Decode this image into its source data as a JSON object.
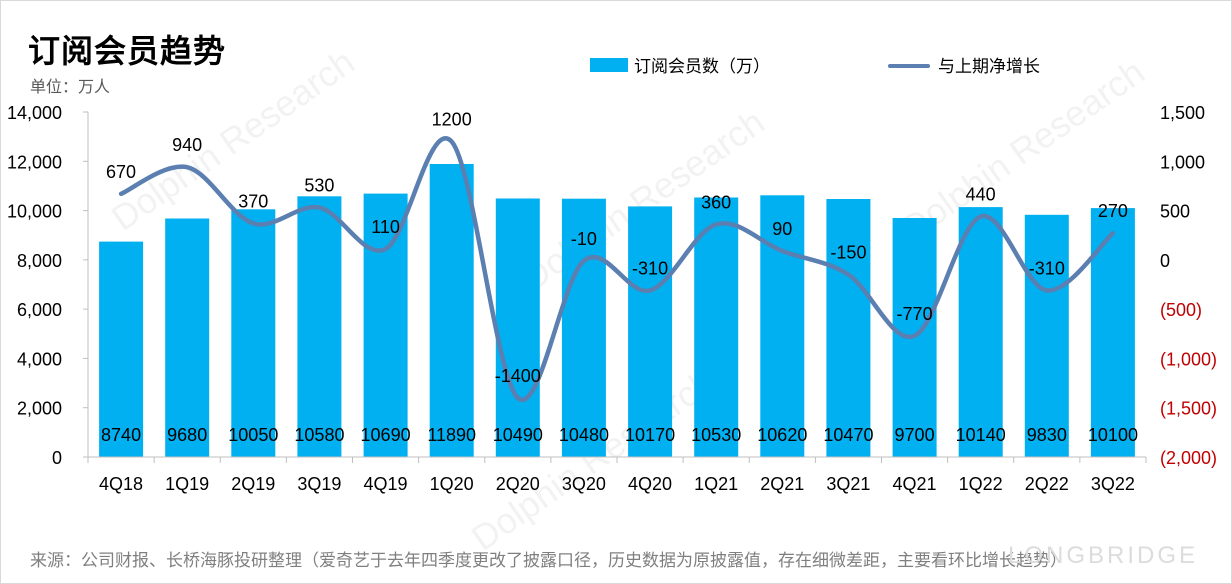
{
  "title": "订阅会员趋势",
  "unit_label": "单位：万人",
  "source_note": "来源：公司财报、长桥海豚投研整理（爱奇艺于去年四季度更改了披露口径，历史数据为原披露值，存在细微差距，主要看环比增长趋势）",
  "watermark": "LONGBRIDGE",
  "watermark_diag": "Dolphin Research",
  "colors": {
    "bar": "#00b0f0",
    "line": "#5b7fb0",
    "negative_axis": "#c00000"
  },
  "legend": [
    {
      "label": "订阅会员数（万）",
      "swatch": "bar"
    },
    {
      "label": "与上期净增长",
      "swatch": "line"
    }
  ],
  "chart_data": {
    "type": "bar+line",
    "categories": [
      "4Q18",
      "1Q19",
      "2Q19",
      "3Q19",
      "4Q19",
      "1Q20",
      "2Q20",
      "3Q20",
      "4Q20",
      "1Q21",
      "2Q21",
      "3Q21",
      "4Q21",
      "1Q22",
      "2Q22",
      "3Q22"
    ],
    "series": [
      {
        "name": "订阅会员数（万）",
        "type": "bar",
        "axis": "left",
        "values": [
          8740,
          9680,
          10050,
          10580,
          10690,
          11890,
          10490,
          10480,
          10170,
          10530,
          10620,
          10470,
          9700,
          10140,
          9830,
          10100
        ]
      },
      {
        "name": "与上期净增长",
        "type": "line",
        "axis": "right",
        "smooth": true,
        "values": [
          670,
          940,
          370,
          530,
          110,
          1200,
          -1400,
          -10,
          -310,
          360,
          90,
          -150,
          -770,
          440,
          -310,
          270
        ]
      }
    ],
    "y_left": {
      "range": [
        0,
        14000
      ],
      "ticks": [
        "0",
        "2,000",
        "4,000",
        "6,000",
        "8,000",
        "10,000",
        "12,000",
        "14,000"
      ]
    },
    "y_right": {
      "range": [
        -2000,
        1500
      ],
      "ticks": [
        "(2,000)",
        "(1,500)",
        "(1,000)",
        "(500)",
        "0",
        "500",
        "1,000",
        "1,500"
      ]
    },
    "grid": false,
    "legend_position": "top"
  }
}
